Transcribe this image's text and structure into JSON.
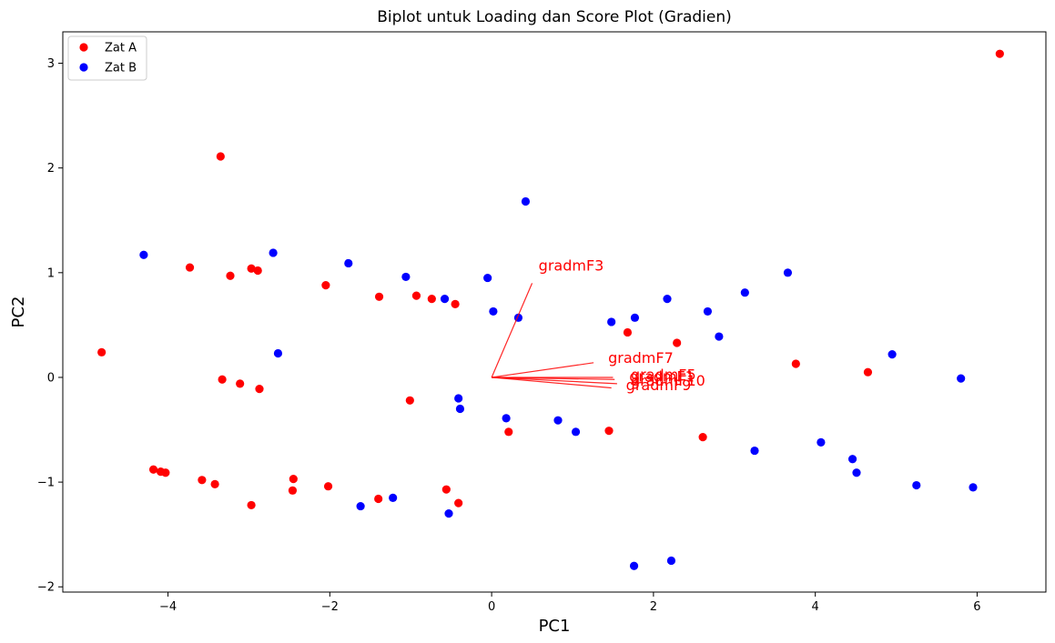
{
  "chart_data": {
    "type": "scatter",
    "title": "Biplot untuk Loading dan Score Plot (Gradien)",
    "xlabel": "PC1",
    "ylabel": "PC2",
    "xlim": [
      -5.3,
      6.85
    ],
    "ylim": [
      -2.05,
      3.3
    ],
    "xticks": [
      -4,
      -2,
      0,
      2,
      4,
      6
    ],
    "yticks": [
      -2,
      -1,
      0,
      1,
      2,
      3
    ],
    "xtick_labels": [
      "−4",
      "−2",
      "0",
      "2",
      "4",
      "6"
    ],
    "ytick_labels": [
      "−2",
      "−1",
      "0",
      "1",
      "2",
      "3"
    ],
    "grid": false,
    "legend_position": "upper-left",
    "series": [
      {
        "name": "Zat A",
        "color": "#ff0000",
        "points": [
          [
            -4.82,
            0.24
          ],
          [
            -3.35,
            2.11
          ],
          [
            -3.73,
            1.05
          ],
          [
            -3.23,
            0.97
          ],
          [
            -2.97,
            1.04
          ],
          [
            -2.89,
            1.02
          ],
          [
            -2.05,
            0.88
          ],
          [
            -1.39,
            0.77
          ],
          [
            -0.93,
            0.78
          ],
          [
            -0.74,
            0.75
          ],
          [
            -0.45,
            0.7
          ],
          [
            -3.33,
            -0.02
          ],
          [
            -3.11,
            -0.06
          ],
          [
            -2.87,
            -0.11
          ],
          [
            -1.01,
            -0.22
          ],
          [
            0.21,
            -0.52
          ],
          [
            1.45,
            -0.51
          ],
          [
            1.68,
            0.43
          ],
          [
            2.29,
            0.33
          ],
          [
            2.61,
            -0.57
          ],
          [
            3.76,
            0.13
          ],
          [
            4.65,
            0.05
          ],
          [
            6.28,
            3.09
          ],
          [
            -4.18,
            -0.88
          ],
          [
            -4.09,
            -0.9
          ],
          [
            -4.03,
            -0.91
          ],
          [
            -3.58,
            -0.98
          ],
          [
            -3.42,
            -1.02
          ],
          [
            -2.97,
            -1.22
          ],
          [
            -2.45,
            -0.97
          ],
          [
            -2.46,
            -1.08
          ],
          [
            -2.02,
            -1.04
          ],
          [
            -1.4,
            -1.16
          ],
          [
            -0.56,
            -1.07
          ],
          [
            -0.41,
            -1.2
          ]
        ]
      },
      {
        "name": "Zat B",
        "color": "#0000ff",
        "points": [
          [
            -4.3,
            1.17
          ],
          [
            -2.7,
            1.19
          ],
          [
            -1.77,
            1.09
          ],
          [
            -1.06,
            0.96
          ],
          [
            -0.58,
            0.75
          ],
          [
            -0.05,
            0.95
          ],
          [
            0.02,
            0.63
          ],
          [
            0.33,
            0.57
          ],
          [
            0.42,
            1.68
          ],
          [
            -2.64,
            0.23
          ],
          [
            1.48,
            0.53
          ],
          [
            1.77,
            0.57
          ],
          [
            2.17,
            0.75
          ],
          [
            2.67,
            0.63
          ],
          [
            2.81,
            0.39
          ],
          [
            3.13,
            0.81
          ],
          [
            3.66,
            1.0
          ],
          [
            4.95,
            0.22
          ],
          [
            5.8,
            -0.01
          ],
          [
            -0.41,
            -0.2
          ],
          [
            -0.39,
            -0.3
          ],
          [
            0.18,
            -0.39
          ],
          [
            0.82,
            -0.41
          ],
          [
            1.04,
            -0.52
          ],
          [
            3.25,
            -0.7
          ],
          [
            4.07,
            -0.62
          ],
          [
            4.46,
            -0.78
          ],
          [
            4.51,
            -0.91
          ],
          [
            5.25,
            -1.03
          ],
          [
            5.95,
            -1.05
          ],
          [
            -1.62,
            -1.23
          ],
          [
            -1.22,
            -1.15
          ],
          [
            -0.53,
            -1.3
          ],
          [
            1.76,
            -1.8
          ],
          [
            2.22,
            -1.75
          ]
        ]
      }
    ],
    "loadings": [
      {
        "name": "gradmF3",
        "x": 0.5,
        "y": 0.9,
        "label_x": 0.58,
        "label_y": 1.02
      },
      {
        "name": "gradmF7",
        "x": 1.26,
        "y": 0.14,
        "label_x": 1.44,
        "label_y": 0.14
      },
      {
        "name": "gradmF5",
        "x": 1.5,
        "y": 0.0,
        "label_x": 1.72,
        "label_y": -0.02
      },
      {
        "name": "gradmF1",
        "x": 1.52,
        "y": -0.02,
        "label_x": 1.7,
        "label_y": -0.04
      },
      {
        "name": "gradmF9",
        "x": 1.48,
        "y": -0.1,
        "label_x": 1.66,
        "label_y": -0.12
      },
      {
        "name": "gradmF10",
        "x": 1.55,
        "y": -0.06,
        "label_x": 1.72,
        "label_y": -0.08
      }
    ],
    "loading_color": "#ff0000"
  }
}
